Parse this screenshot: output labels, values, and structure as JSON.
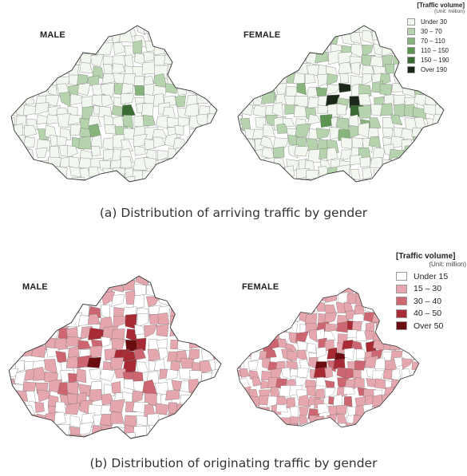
{
  "panel_a": {
    "caption": "(a) Distribution of arriving traffic by gender",
    "map_male_label": "MALE",
    "map_female_label": "FEMALE",
    "legend": {
      "title": "[Traffic volume]",
      "unit": "(Unit: million)",
      "items": [
        {
          "label": "Under 30",
          "color": "#f2f7f0"
        },
        {
          "label": "30  –  70",
          "color": "#b5d3ad"
        },
        {
          "label": "70  –  110",
          "color": "#86b47b"
        },
        {
          "label": "110 – 150",
          "color": "#5c9451"
        },
        {
          "label": "150 – 190",
          "color": "#3a6b33"
        },
        {
          "label": "Over 190",
          "color": "#1b2a18"
        }
      ]
    }
  },
  "panel_b": {
    "caption": "(b) Distribution of originating traffic by gender",
    "map_male_label": "MALE",
    "map_female_label": "FEMALE",
    "legend": {
      "title": "[Traffic volume]",
      "unit": "(Unit: million)",
      "items": [
        {
          "label": "Under 15",
          "color": "#ffffff"
        },
        {
          "label": "15  –  30",
          "color": "#e5a6ad"
        },
        {
          "label": "30  –  40",
          "color": "#cd6670"
        },
        {
          "label": "40  –  50",
          "color": "#a72a34"
        },
        {
          "label": "Over  50",
          "color": "#6a0c10"
        }
      ]
    }
  }
}
